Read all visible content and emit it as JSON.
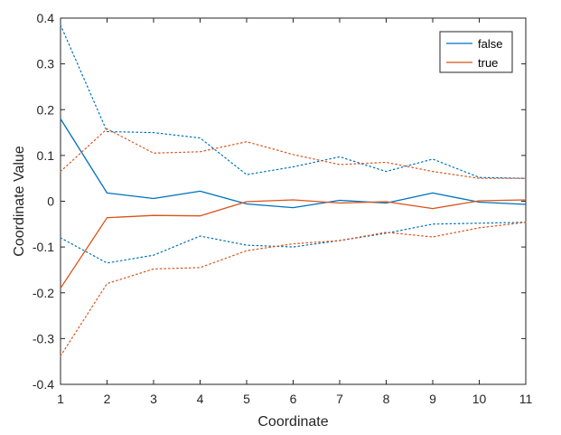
{
  "chart_data": {
    "type": "line",
    "title": "",
    "xlabel": "Coordinate",
    "ylabel": "Coordinate Value",
    "xlim": [
      1,
      11
    ],
    "ylim": [
      -0.4,
      0.4
    ],
    "x_ticks": [
      1,
      2,
      3,
      4,
      5,
      6,
      7,
      8,
      9,
      10,
      11
    ],
    "y_ticks": [
      -0.4,
      -0.3,
      -0.2,
      -0.1,
      0,
      0.1,
      0.2,
      0.3,
      0.4
    ],
    "y_tick_labels": [
      "-0.4",
      "-0.3",
      "-0.2",
      "-0.1",
      "0",
      "0.1",
      "0.2",
      "0.3",
      "0.4"
    ],
    "grid": false,
    "legend_position": "top-right",
    "x": [
      1,
      2,
      3,
      4,
      5,
      6,
      7,
      8,
      9,
      10,
      11
    ],
    "series": [
      {
        "name": "false",
        "color": "#0072BD",
        "style": "solid",
        "values": [
          0.18,
          0.018,
          0.006,
          0.022,
          -0.006,
          -0.014,
          0.002,
          -0.004,
          0.018,
          -0.002,
          -0.007
        ]
      },
      {
        "name": "true",
        "color": "#D95319",
        "style": "solid",
        "values": [
          -0.19,
          -0.036,
          -0.031,
          -0.032,
          -0.001,
          0.003,
          -0.004,
          -0.001,
          -0.016,
          0.001,
          0.003
        ]
      },
      {
        "color": "#0072BD",
        "style": "dotted",
        "values": [
          0.385,
          0.152,
          0.15,
          0.138,
          0.058,
          0.075,
          0.097,
          0.065,
          0.092,
          0.052,
          0.05
        ]
      },
      {
        "color": "#0072BD",
        "style": "dotted",
        "values": [
          -0.08,
          -0.135,
          -0.118,
          -0.076,
          -0.096,
          -0.1,
          -0.086,
          -0.07,
          -0.05,
          -0.048,
          -0.046
        ]
      },
      {
        "color": "#D95319",
        "style": "dotted",
        "values": [
          0.065,
          0.158,
          0.105,
          0.108,
          0.13,
          0.102,
          0.08,
          0.085,
          0.065,
          0.05,
          0.05
        ]
      },
      {
        "color": "#D95319",
        "style": "dotted",
        "values": [
          -0.338,
          -0.18,
          -0.148,
          -0.145,
          -0.108,
          -0.093,
          -0.086,
          -0.068,
          -0.078,
          -0.058,
          -0.046
        ]
      }
    ],
    "legend": [
      {
        "label": "false",
        "color": "#0072BD"
      },
      {
        "label": "true",
        "color": "#D95319"
      }
    ]
  }
}
